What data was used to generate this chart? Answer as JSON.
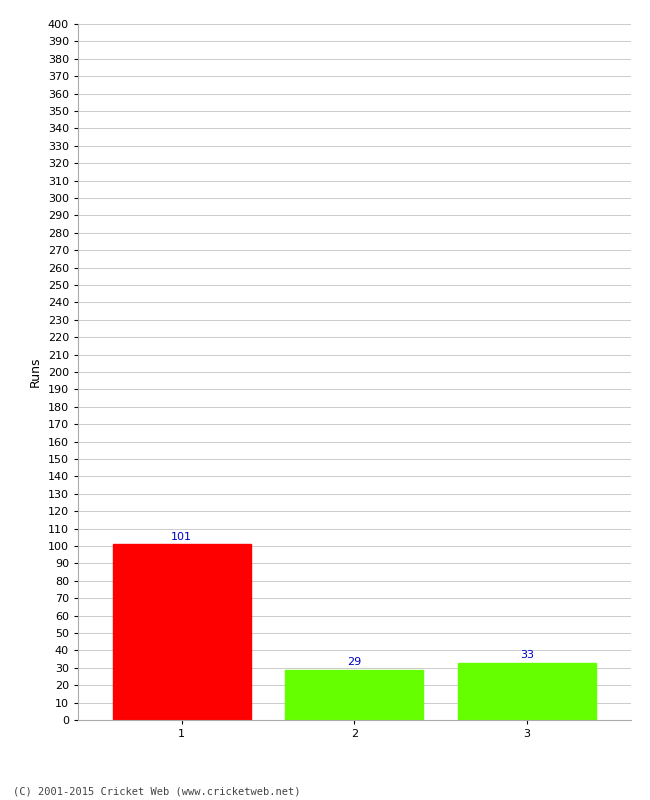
{
  "ylabel": "Runs",
  "categories": [
    "1",
    "2",
    "3"
  ],
  "values": [
    101,
    29,
    33
  ],
  "bar_colors": [
    "#ff0000",
    "#66ff00",
    "#66ff00"
  ],
  "value_labels": [
    "101",
    "29",
    "33"
  ],
  "value_label_color": "#0000cc",
  "ylim": [
    0,
    400
  ],
  "yticks": [
    0,
    10,
    20,
    30,
    40,
    50,
    60,
    70,
    80,
    90,
    100,
    110,
    120,
    130,
    140,
    150,
    160,
    170,
    180,
    190,
    200,
    210,
    220,
    230,
    240,
    250,
    260,
    270,
    280,
    290,
    300,
    310,
    320,
    330,
    340,
    350,
    360,
    370,
    380,
    390,
    400
  ],
  "background_color": "#ffffff",
  "grid_color": "#cccccc",
  "footer": "(C) 2001-2015 Cricket Web (www.cricketweb.net)",
  "footer_color": "#444444",
  "tick_label_fontsize": 8,
  "axis_label_fontsize": 9,
  "value_label_fontsize": 8,
  "bar_width": 0.8
}
